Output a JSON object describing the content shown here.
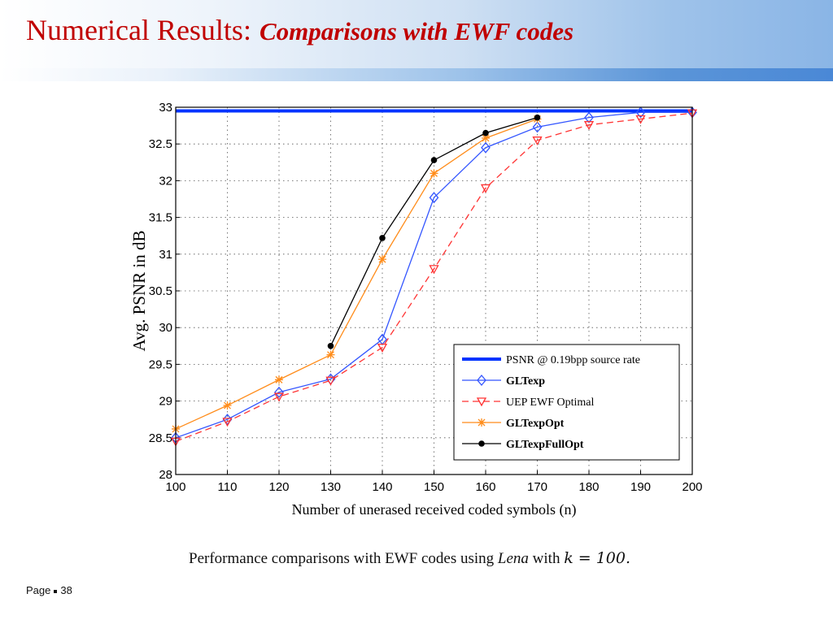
{
  "slide": {
    "title_main": "Numerical Results:",
    "title_sub": "Comparisons with  EWF codes",
    "caption_pre": "Performance comparisons with EWF codes using ",
    "caption_italic": "Lena",
    "caption_mid": " with ",
    "caption_math": "k = 100.",
    "footer_label": "Page",
    "footer_number": "38"
  },
  "colors": {
    "title": "#c00000",
    "psnr_line": "#0033ff",
    "gltexp": "#3355ff",
    "uep": "#ff3333",
    "gltexpopt": "#ff8c1a",
    "gltexpfullopt": "#000000"
  },
  "chart_data": {
    "type": "line",
    "xlabel": "Number of unerased received coded symbols (n)",
    "ylabel": "Avg. PSNR in dB",
    "xlim": [
      100,
      200
    ],
    "ylim": [
      28,
      33
    ],
    "xticks": [
      "100",
      "110",
      "120",
      "130",
      "140",
      "150",
      "160",
      "170",
      "180",
      "190",
      "200"
    ],
    "yticks": [
      "28",
      "28.5",
      "29",
      "29.5",
      "30",
      "30.5",
      "31",
      "31.5",
      "32",
      "32.5",
      "33"
    ],
    "grid": true,
    "legend_position": "bottom-right",
    "series": [
      {
        "name": "PSNR @ 0.19bpp source rate",
        "style": "thick-solid",
        "marker": "none",
        "x": [
          100,
          200
        ],
        "y": [
          32.95,
          32.95
        ]
      },
      {
        "name": "GLTexp",
        "style": "solid",
        "marker": "diamond",
        "x": [
          100,
          110,
          120,
          130,
          140,
          150,
          160,
          170,
          180,
          190,
          200
        ],
        "y": [
          28.5,
          28.75,
          29.12,
          29.3,
          29.84,
          31.77,
          32.45,
          32.73,
          32.86,
          32.93,
          32.93
        ]
      },
      {
        "name": "UEP EWF Optimal",
        "style": "dashed",
        "marker": "triangle-down",
        "x": [
          100,
          110,
          120,
          130,
          140,
          150,
          160,
          170,
          180,
          190,
          200
        ],
        "y": [
          28.45,
          28.72,
          29.06,
          29.28,
          29.73,
          30.8,
          31.9,
          32.55,
          32.76,
          32.84,
          32.92
        ]
      },
      {
        "name": "GLTexpOpt",
        "style": "solid",
        "marker": "asterisk",
        "x": [
          100,
          110,
          120,
          130,
          140,
          150,
          160,
          170
        ],
        "y": [
          28.62,
          28.94,
          29.29,
          29.63,
          30.93,
          32.1,
          32.58,
          32.84
        ]
      },
      {
        "name": "GLTexpFullOpt",
        "style": "solid",
        "marker": "dot",
        "x": [
          130,
          140,
          150,
          160,
          170
        ],
        "y": [
          29.75,
          31.22,
          32.28,
          32.65,
          32.86
        ]
      }
    ]
  }
}
